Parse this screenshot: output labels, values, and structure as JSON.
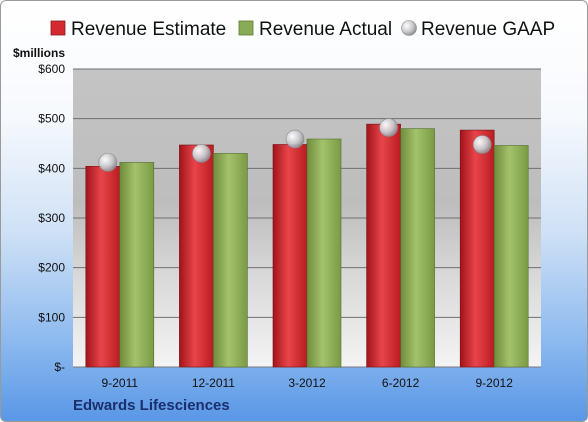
{
  "company": "Edwards Lifesciences",
  "unit_label": "$millions",
  "colors": {
    "estimate": "#d42a2f",
    "actual": "#8aab55",
    "gaap": "#c8c8cc"
  },
  "chart_data": {
    "type": "bar",
    "categories": [
      "9-2011",
      "12-2011",
      "3-2012",
      "6-2012",
      "9-2012"
    ],
    "series": [
      {
        "name": "Revenue Estimate",
        "type": "bar",
        "values": [
          404,
          447,
          448,
          489,
          477
        ]
      },
      {
        "name": "Revenue Actual",
        "type": "bar",
        "values": [
          412,
          430,
          459,
          480,
          446
        ]
      },
      {
        "name": "Revenue GAAP",
        "type": "scatter",
        "values": [
          412,
          430,
          459,
          482,
          448
        ]
      }
    ],
    "ylim": [
      0,
      600
    ],
    "yticks": [
      0,
      100,
      200,
      300,
      400,
      500,
      600
    ],
    "ytick_labels": [
      "$-",
      "$100",
      "$200",
      "$300",
      "$400",
      "$500",
      "$600"
    ],
    "ylabel": "$millions",
    "grid": true,
    "legend": "top"
  }
}
